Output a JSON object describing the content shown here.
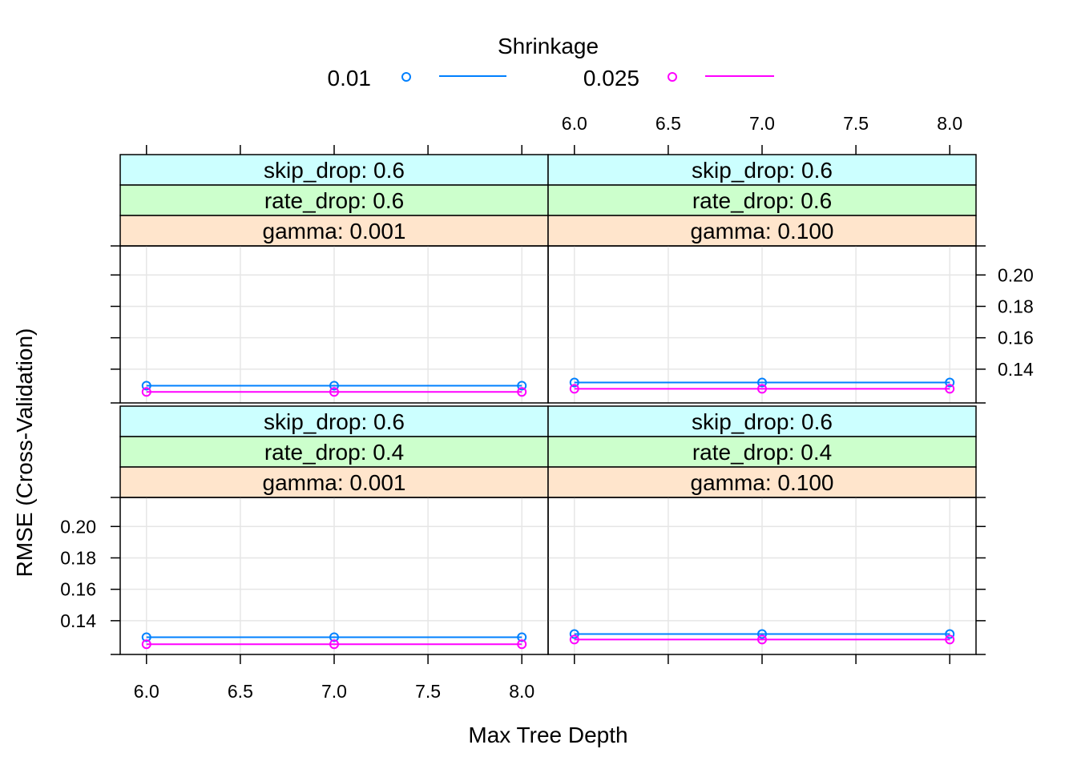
{
  "chart_data": {
    "type": "line",
    "xlabel": "Max Tree Depth",
    "ylabel": "RMSE (Cross-Validation)",
    "x_ticks": [
      "6.0",
      "6.5",
      "7.0",
      "7.5",
      "8.0"
    ],
    "y_ticks": [
      "0.14",
      "0.16",
      "0.18",
      "0.20"
    ],
    "xlim": [
      5.86,
      8.14
    ],
    "ylim": [
      0.1185,
      0.2185
    ],
    "legend": {
      "title": "Shrinkage",
      "placement": "top",
      "entries": [
        {
          "name": "0.01",
          "color": "#0080ff"
        },
        {
          "name": "0.025",
          "color": "#ff00ff"
        }
      ]
    },
    "x": [
      6,
      7,
      8
    ],
    "panels": [
      {
        "strips": [
          "skip_drop: 0.6",
          "rate_drop: 0.6",
          "gamma: 0.001"
        ],
        "series": [
          {
            "name": "0.01",
            "values": [
              0.1295,
              0.1295,
              0.1295
            ]
          },
          {
            "name": "0.025",
            "values": [
              0.1255,
              0.1255,
              0.1255
            ]
          }
        ]
      },
      {
        "strips": [
          "skip_drop: 0.6",
          "rate_drop: 0.6",
          "gamma: 0.100"
        ],
        "series": [
          {
            "name": "0.01",
            "values": [
              0.1315,
              0.1315,
              0.1315
            ]
          },
          {
            "name": "0.025",
            "values": [
              0.1275,
              0.1275,
              0.1275
            ]
          }
        ]
      },
      {
        "strips": [
          "skip_drop: 0.6",
          "rate_drop: 0.4",
          "gamma: 0.001"
        ],
        "series": [
          {
            "name": "0.01",
            "values": [
              0.1295,
              0.1295,
              0.1295
            ]
          },
          {
            "name": "0.025",
            "values": [
              0.125,
              0.125,
              0.125
            ]
          }
        ]
      },
      {
        "strips": [
          "skip_drop: 0.6",
          "rate_drop: 0.4",
          "gamma: 0.100"
        ],
        "series": [
          {
            "name": "0.01",
            "values": [
              0.1315,
              0.1315,
              0.1315
            ]
          },
          {
            "name": "0.025",
            "values": [
              0.128,
              0.128,
              0.128
            ]
          }
        ]
      }
    ],
    "strip_colors": [
      "#ccffff",
      "#ccffcc",
      "#ffe5cc"
    ],
    "grid": true
  }
}
